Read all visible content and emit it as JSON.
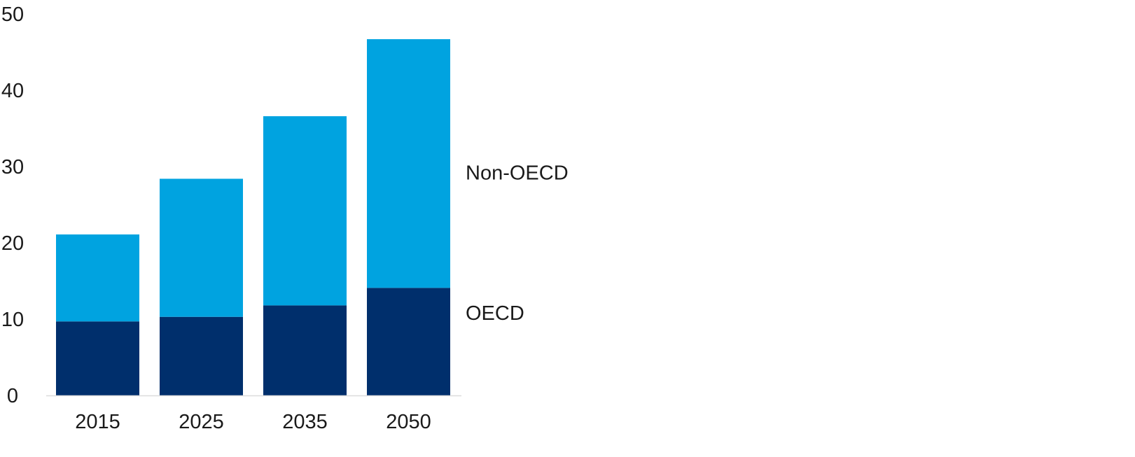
{
  "chart_data": {
    "type": "bar",
    "stacked": true,
    "categories": [
      "2015",
      "2025",
      "2035",
      "2050"
    ],
    "series": [
      {
        "name": "OECD",
        "values": [
          9.7,
          10.3,
          11.8,
          14.1
        ],
        "color": "#002f6c"
      },
      {
        "name": "Non-OECD",
        "values": [
          11.4,
          18.1,
          24.8,
          32.6
        ],
        "color": "#00a3e0"
      }
    ],
    "y_ticks": [
      "0",
      "10",
      "20",
      "30",
      "40",
      "50"
    ],
    "ylim": [
      0,
      50
    ],
    "title": "",
    "xlabel": "",
    "ylabel": "",
    "legend": "right, labels beside the stacked segments",
    "grid": false
  }
}
